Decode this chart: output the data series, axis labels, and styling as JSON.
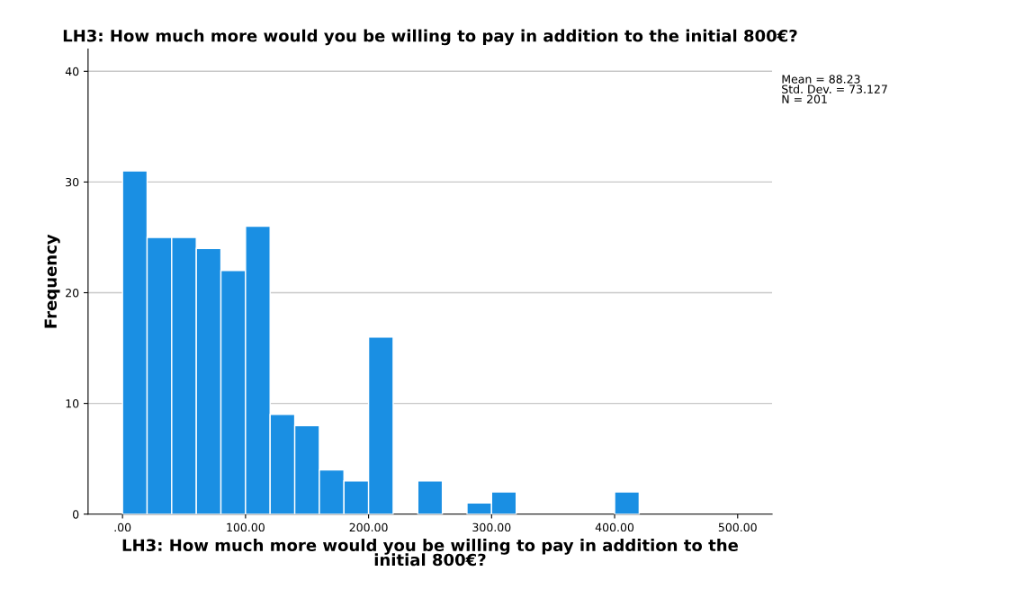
{
  "chart_data": {
    "type": "histogram",
    "title": "LH3: How much more would you be willing to pay in addition to the initial 800€?",
    "xlabel": "LH3: How much more would you be willing to pay in addition to the\ninitial 800€?",
    "ylabel": "Frequency",
    "bins": [
      0,
      20,
      40,
      60,
      80,
      100,
      120,
      140,
      160,
      180,
      200,
      220,
      240,
      260,
      280,
      300,
      320,
      340,
      360,
      380,
      400,
      420
    ],
    "values": [
      31,
      25,
      25,
      24,
      22,
      26,
      9,
      8,
      4,
      3,
      16,
      0,
      3,
      0,
      1,
      2,
      0,
      0,
      0,
      0,
      2
    ],
    "color": "#1a8fe3",
    "xlim": [
      -28,
      528
    ],
    "xticks": [
      {
        "value": 0,
        "label": ".00"
      },
      {
        "value": 100,
        "label": "100.00"
      },
      {
        "value": 200,
        "label": "200.00"
      },
      {
        "value": 300,
        "label": "300.00"
      },
      {
        "value": 400,
        "label": "400.00"
      },
      {
        "value": 500,
        "label": "500.00"
      }
    ],
    "ylim": [
      0,
      42
    ],
    "yticks": [
      0,
      10,
      20,
      30,
      40
    ],
    "grid": "y",
    "annotations": [
      "Mean = 88.23\nStd. Dev. = 73.127\nN = 201"
    ]
  }
}
